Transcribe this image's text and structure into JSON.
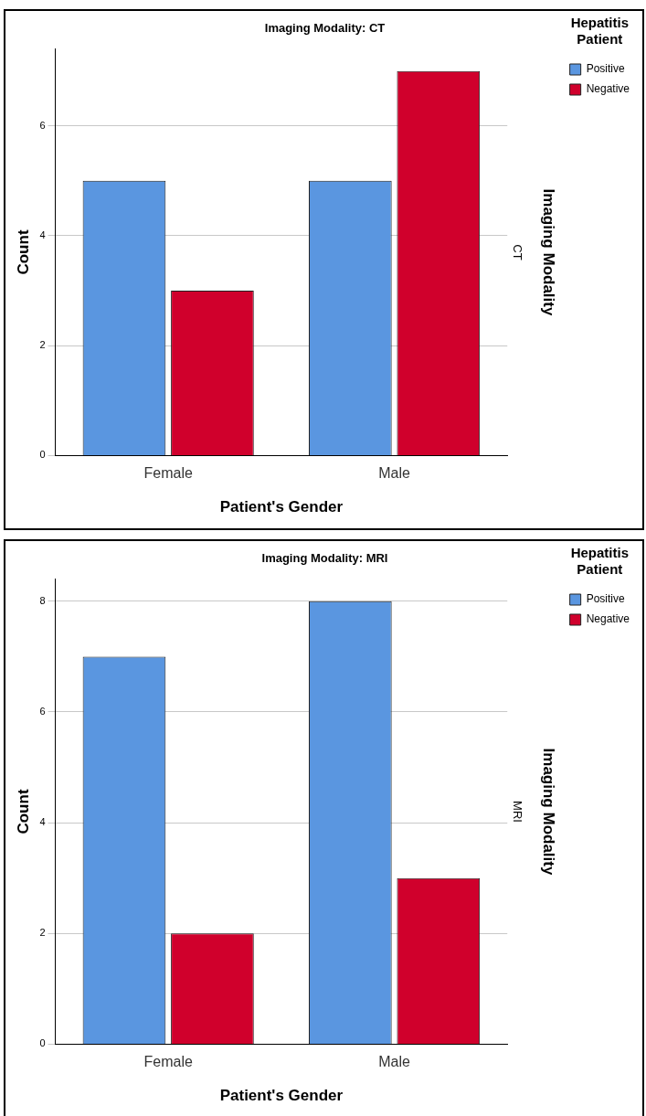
{
  "chart_data": [
    {
      "type": "bar",
      "title": "Imaging Modality: CT",
      "xlabel": "Patient's Gender",
      "ylabel": "Count",
      "y2label": "Imaging Modality",
      "legend_title": "Hepatitis Patient",
      "annotations": [
        "CT"
      ],
      "categories": [
        "Female",
        "Male"
      ],
      "series": [
        {
          "name": "Positive",
          "color": "#5a96e0",
          "values": [
            5,
            5
          ]
        },
        {
          "name": "Negative",
          "color": "#d0002c",
          "values": [
            3,
            7
          ]
        }
      ],
      "ylim": [
        0,
        7.4
      ],
      "yticks": [
        0,
        2,
        4,
        6
      ],
      "grid": "y",
      "legend": "top right"
    },
    {
      "type": "bar",
      "title": "Imaging Modality: MRI",
      "xlabel": "Patient's Gender",
      "ylabel": "Count",
      "y2label": "Imaging Modality",
      "legend_title": "Hepatitis Patient",
      "annotations": [
        "MRI"
      ],
      "categories": [
        "Female",
        "Male"
      ],
      "series": [
        {
          "name": "Positive",
          "color": "#5a96e0",
          "values": [
            7,
            8
          ]
        },
        {
          "name": "Negative",
          "color": "#d0002c",
          "values": [
            2,
            3
          ]
        }
      ],
      "ylim": [
        0,
        8.4
      ],
      "yticks": [
        0,
        2,
        4,
        6,
        8
      ],
      "grid": "y",
      "legend": "top right"
    }
  ]
}
